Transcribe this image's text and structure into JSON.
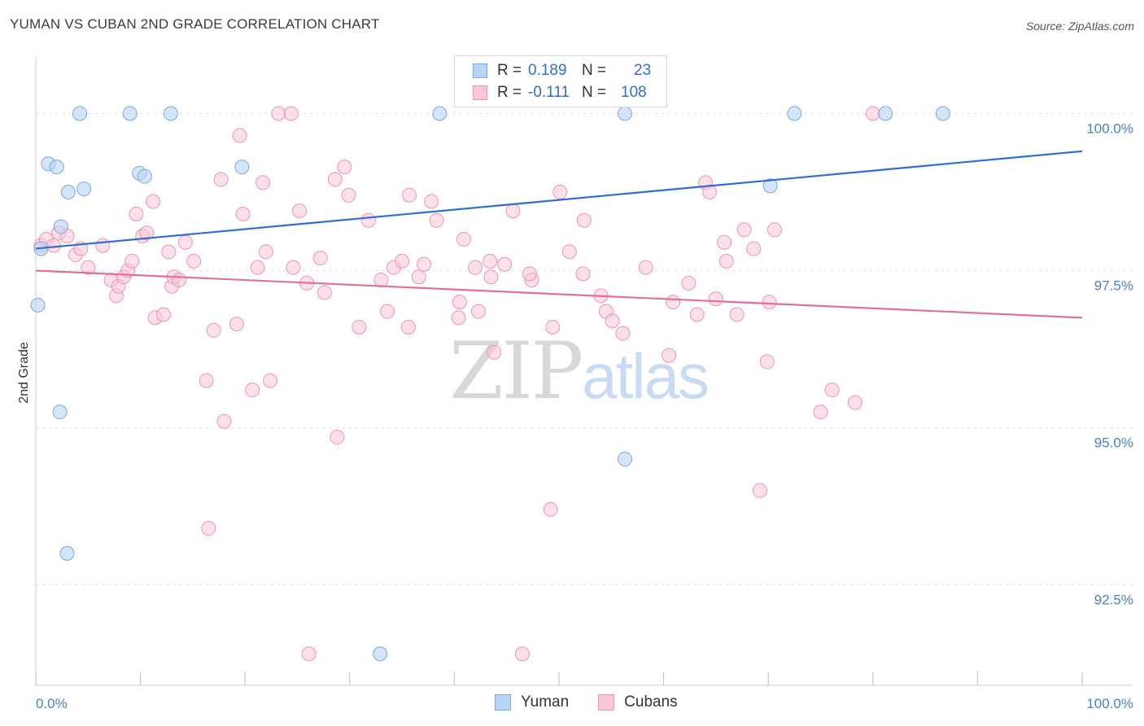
{
  "header": {
    "title": "YUMAN VS CUBAN 2ND GRADE CORRELATION CHART",
    "source": "Source: ZipAtlas.com"
  },
  "watermark": {
    "part1": "ZIP",
    "part2": "atlas"
  },
  "legend": {
    "rows": [
      {
        "r_label": "R =",
        "r_value": "0.189",
        "n_label": "N =",
        "n_value": "23"
      },
      {
        "r_label": "R =",
        "r_value": "-0.111",
        "n_label": "N =",
        "n_value": "108"
      }
    ]
  },
  "bottom_legend": {
    "series1": "Yuman",
    "series2": "Cubans"
  },
  "colors": {
    "yuman_fill": "#b9d3f4",
    "yuman_stroke": "#7aa8e0",
    "yuman_line": "#2f6fd0",
    "cubans_fill": "#f9c6d5",
    "cubans_stroke": "#ee94b2",
    "cubans_line": "#e0709a",
    "value_text": "#2f6fd0",
    "grid": "#e3e3e3"
  },
  "chart_data": {
    "type": "scatter",
    "title": "YUMAN VS CUBAN 2ND GRADE CORRELATION CHART",
    "xlabel": "",
    "ylabel": "2nd Grade",
    "xlim": [
      0,
      100
    ],
    "ylim": [
      90.9,
      100.9
    ],
    "y_ticks": [
      {
        "value": 100,
        "label": "100.0%"
      },
      {
        "value": 97.5,
        "label": "97.5%"
      },
      {
        "value": 95,
        "label": "95.0%"
      },
      {
        "value": 92.5,
        "label": "92.5%"
      }
    ],
    "x_tick_labels": {
      "min": "0.0%",
      "max": "100.0%"
    },
    "grid": true,
    "series": [
      {
        "name": "Yuman",
        "trend": {
          "x": [
            0,
            100
          ],
          "y": [
            97.85,
            99.4
          ]
        },
        "points": [
          [
            0.2,
            96.95
          ],
          [
            0.5,
            97.85
          ],
          [
            1.2,
            99.2
          ],
          [
            2.0,
            99.15
          ],
          [
            2.4,
            98.2
          ],
          [
            3.1,
            98.75
          ],
          [
            4.6,
            98.8
          ],
          [
            4.2,
            100
          ],
          [
            9.0,
            100
          ],
          [
            12.9,
            100
          ],
          [
            9.9,
            99.05
          ],
          [
            10.4,
            99.0
          ],
          [
            19.7,
            99.15
          ],
          [
            2.3,
            95.25
          ],
          [
            3.0,
            93.0
          ],
          [
            38.6,
            100
          ],
          [
            56.3,
            94.5
          ],
          [
            56.3,
            100
          ],
          [
            70.2,
            98.85
          ],
          [
            72.5,
            100
          ],
          [
            81.2,
            100
          ],
          [
            86.7,
            100
          ],
          [
            32.9,
            91.4
          ]
        ]
      },
      {
        "name": "Cubans",
        "trend": {
          "x": [
            0,
            100
          ],
          "y": [
            97.5,
            96.75
          ]
        },
        "points": [
          [
            0.5,
            97.9
          ],
          [
            1.0,
            98.0
          ],
          [
            1.7,
            97.9
          ],
          [
            2.2,
            98.1
          ],
          [
            3.0,
            98.05
          ],
          [
            3.8,
            97.75
          ],
          [
            4.3,
            97.85
          ],
          [
            5.0,
            97.55
          ],
          [
            6.4,
            97.9
          ],
          [
            7.2,
            97.35
          ],
          [
            7.7,
            97.1
          ],
          [
            7.9,
            97.25
          ],
          [
            8.4,
            97.4
          ],
          [
            8.8,
            97.5
          ],
          [
            9.2,
            97.65
          ],
          [
            9.6,
            98.4
          ],
          [
            10.2,
            98.05
          ],
          [
            10.6,
            98.1
          ],
          [
            11.2,
            98.6
          ],
          [
            11.4,
            96.75
          ],
          [
            12.2,
            96.8
          ],
          [
            12.7,
            97.8
          ],
          [
            13.0,
            97.25
          ],
          [
            13.2,
            97.4
          ],
          [
            13.7,
            97.35
          ],
          [
            14.3,
            97.95
          ],
          [
            15.1,
            97.65
          ],
          [
            16.3,
            95.75
          ],
          [
            16.5,
            93.4
          ],
          [
            17.0,
            96.55
          ],
          [
            17.7,
            98.95
          ],
          [
            18.0,
            95.1
          ],
          [
            19.2,
            96.65
          ],
          [
            19.5,
            99.65
          ],
          [
            19.8,
            98.4
          ],
          [
            20.7,
            95.6
          ],
          [
            21.2,
            97.55
          ],
          [
            21.7,
            98.9
          ],
          [
            22.0,
            97.8
          ],
          [
            22.4,
            95.75
          ],
          [
            23.2,
            100
          ],
          [
            24.4,
            100
          ],
          [
            24.6,
            97.55
          ],
          [
            25.2,
            98.45
          ],
          [
            25.9,
            97.3
          ],
          [
            26.1,
            91.4
          ],
          [
            27.2,
            97.7
          ],
          [
            27.6,
            97.15
          ],
          [
            28.6,
            98.95
          ],
          [
            28.8,
            94.85
          ],
          [
            29.5,
            99.15
          ],
          [
            29.9,
            98.7
          ],
          [
            30.9,
            96.6
          ],
          [
            31.8,
            98.3
          ],
          [
            33.0,
            97.35
          ],
          [
            33.6,
            96.85
          ],
          [
            34.2,
            97.55
          ],
          [
            35.0,
            97.65
          ],
          [
            35.6,
            96.6
          ],
          [
            35.7,
            98.7
          ],
          [
            36.6,
            97.4
          ],
          [
            37.1,
            97.6
          ],
          [
            37.8,
            98.6
          ],
          [
            38.3,
            98.3
          ],
          [
            40.4,
            96.75
          ],
          [
            40.9,
            98.0
          ],
          [
            42.0,
            97.55
          ],
          [
            42.3,
            96.85
          ],
          [
            43.4,
            97.65
          ],
          [
            43.5,
            97.4
          ],
          [
            43.8,
            96.2
          ],
          [
            44.8,
            97.6
          ],
          [
            45.6,
            98.45
          ],
          [
            46.5,
            91.4
          ],
          [
            47.4,
            97.35
          ],
          [
            49.2,
            93.7
          ],
          [
            49.4,
            96.6
          ],
          [
            50.1,
            98.75
          ],
          [
            51.0,
            97.8
          ],
          [
            52.3,
            97.45
          ],
          [
            52.4,
            98.3
          ],
          [
            54.0,
            97.1
          ],
          [
            54.5,
            96.85
          ],
          [
            55.1,
            96.7
          ],
          [
            56.1,
            96.5
          ],
          [
            58.3,
            97.55
          ],
          [
            60.5,
            96.15
          ],
          [
            60.9,
            97.0
          ],
          [
            62.4,
            97.3
          ],
          [
            63.2,
            96.8
          ],
          [
            64.0,
            98.9
          ],
          [
            64.4,
            98.75
          ],
          [
            65.0,
            97.05
          ],
          [
            65.8,
            97.95
          ],
          [
            66.0,
            97.65
          ],
          [
            67.0,
            96.8
          ],
          [
            67.7,
            98.15
          ],
          [
            68.6,
            97.85
          ],
          [
            69.2,
            94.0
          ],
          [
            69.9,
            96.05
          ],
          [
            70.1,
            97.0
          ],
          [
            70.6,
            98.15
          ],
          [
            75.0,
            95.25
          ],
          [
            76.1,
            95.6
          ],
          [
            78.3,
            95.4
          ],
          [
            80.0,
            100
          ],
          [
            47.2,
            97.45
          ],
          [
            40.5,
            97.0
          ]
        ]
      }
    ]
  }
}
